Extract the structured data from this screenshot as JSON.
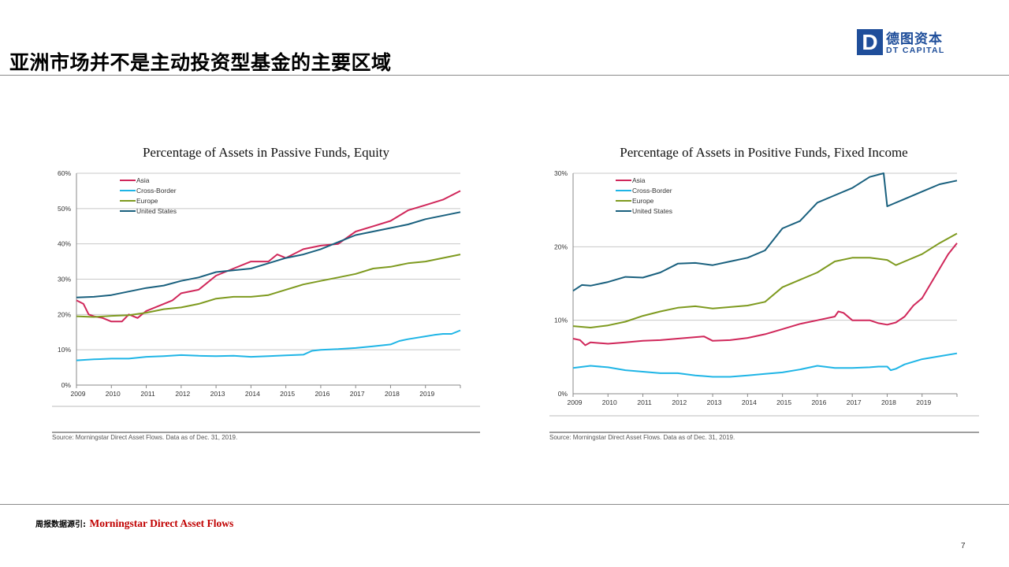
{
  "slide": {
    "title": "亚洲市场并不是主动投资型基金的主要区域",
    "logo_mark": "D",
    "logo_cn": "德图资本",
    "logo_en": "DT CAPITAL",
    "footnote_label": "周报数据源引:",
    "footnote_value": "Morningstar Direct Asset Flows",
    "page_number": "7"
  },
  "colors": {
    "Asia": "#d0275a",
    "Cross-Border": "#1fb5e6",
    "Europe": "#7e9a1f",
    "United States": "#19607e"
  },
  "chart_data": [
    {
      "type": "line",
      "title": "Percentage of Assets in Passive Funds, Equity",
      "source": "Source: Morningstar Direct Asset Flows. Data as of Dec. 31, 2019.",
      "x_tick_labels": [
        "2009",
        "2010",
        "2011",
        "2012",
        "2013",
        "2014",
        "2015",
        "2016",
        "2017",
        "2018",
        "2019"
      ],
      "y_tick_labels": [
        "0%",
        "10%",
        "20%",
        "30%",
        "40%",
        "50%",
        "60%"
      ],
      "xlim": [
        2009,
        2020
      ],
      "ylim": [
        0,
        60
      ],
      "y_ticks": [
        0,
        10,
        20,
        30,
        40,
        50,
        60
      ],
      "grid": true,
      "legend_position": "top-left",
      "series": [
        {
          "name": "Asia",
          "color_key": "Asia",
          "x": [
            2009.0,
            2009.2,
            2009.35,
            2009.5,
            2009.75,
            2010.0,
            2010.3,
            2010.5,
            2010.75,
            2011.0,
            2011.25,
            2011.5,
            2011.75,
            2012.0,
            2012.5,
            2013.0,
            2013.5,
            2014.0,
            2014.5,
            2014.75,
            2015.0,
            2015.5,
            2016.0,
            2016.5,
            2017.0,
            2017.5,
            2018.0,
            2018.5,
            2019.0,
            2019.5,
            2020.0
          ],
          "y": [
            24,
            23,
            20,
            19.5,
            19,
            18,
            18,
            20,
            19,
            21,
            22,
            23,
            24,
            26,
            27,
            31,
            33,
            35,
            35,
            37,
            36,
            38.5,
            39.5,
            40,
            43.5,
            45,
            46.5,
            49.5,
            51,
            52.5,
            55
          ]
        },
        {
          "name": "Cross-Border",
          "color_key": "Cross-Border",
          "x": [
            2009.0,
            2009.5,
            2010.0,
            2010.5,
            2011.0,
            2011.5,
            2012.0,
            2012.5,
            2013.0,
            2013.5,
            2014.0,
            2014.5,
            2015.0,
            2015.5,
            2015.75,
            2016.0,
            2016.5,
            2017.0,
            2017.5,
            2018.0,
            2018.25,
            2018.5,
            2019.0,
            2019.25,
            2019.5,
            2019.75,
            2020.0
          ],
          "y": [
            7,
            7.3,
            7.5,
            7.5,
            8,
            8.2,
            8.5,
            8.3,
            8.2,
            8.3,
            8,
            8.2,
            8.4,
            8.6,
            9.7,
            10,
            10.2,
            10.5,
            11,
            11.5,
            12.5,
            13,
            13.8,
            14.2,
            14.5,
            14.5,
            15.5
          ]
        },
        {
          "name": "Europe",
          "color_key": "Europe",
          "x": [
            2009.0,
            2009.5,
            2010.0,
            2010.5,
            2011.0,
            2011.5,
            2012.0,
            2012.5,
            2013.0,
            2013.5,
            2014.0,
            2014.5,
            2015.0,
            2015.5,
            2016.0,
            2016.5,
            2017.0,
            2017.5,
            2018.0,
            2018.5,
            2019.0,
            2019.5,
            2020.0
          ],
          "y": [
            19.5,
            19.3,
            19.6,
            19.8,
            20.5,
            21.5,
            22,
            23,
            24.5,
            25,
            25,
            25.5,
            27,
            28.5,
            29.5,
            30.5,
            31.5,
            33,
            33.5,
            34.5,
            35,
            36,
            37
          ]
        },
        {
          "name": "United States",
          "color_key": "United States",
          "x": [
            2009.0,
            2009.5,
            2010.0,
            2010.5,
            2011.0,
            2011.5,
            2012.0,
            2012.5,
            2013.0,
            2013.5,
            2014.0,
            2014.5,
            2015.0,
            2015.5,
            2016.0,
            2016.5,
            2017.0,
            2017.5,
            2018.0,
            2018.5,
            2019.0,
            2019.5,
            2020.0
          ],
          "y": [
            24.8,
            25,
            25.5,
            26.5,
            27.5,
            28.2,
            29.5,
            30.5,
            32,
            32.5,
            33,
            34.5,
            36,
            37,
            38.5,
            40.5,
            42.5,
            43.5,
            44.5,
            45.5,
            47,
            48,
            49
          ]
        }
      ]
    },
    {
      "type": "line",
      "title": "Percentage of Assets in Positive Funds, Fixed Income",
      "source": "Source: Morningstar Direct Asset Flows. Data as of Dec. 31, 2019.",
      "x_tick_labels": [
        "2009",
        "2010",
        "2011",
        "2012",
        "2013",
        "2014",
        "2015",
        "2016",
        "2017",
        "2018",
        "2019"
      ],
      "y_tick_labels": [
        "0%",
        "10%",
        "20%",
        "30%"
      ],
      "xlim": [
        2009,
        2020
      ],
      "ylim": [
        0,
        30
      ],
      "y_ticks": [
        0,
        10,
        20,
        30
      ],
      "grid": true,
      "legend_position": "top-left",
      "series": [
        {
          "name": "Asia",
          "color_key": "Asia",
          "x": [
            2009.0,
            2009.2,
            2009.35,
            2009.5,
            2010.0,
            2010.5,
            2011.0,
            2011.5,
            2012.0,
            2012.5,
            2012.75,
            2013.0,
            2013.5,
            2014.0,
            2014.5,
            2015.0,
            2015.5,
            2016.0,
            2016.5,
            2016.6,
            2016.75,
            2017.0,
            2017.5,
            2017.75,
            2018.0,
            2018.25,
            2018.5,
            2018.75,
            2019.0,
            2019.25,
            2019.5,
            2019.75,
            2020.0
          ],
          "y": [
            7.5,
            7.3,
            6.6,
            7,
            6.8,
            7,
            7.2,
            7.3,
            7.5,
            7.7,
            7.8,
            7.2,
            7.3,
            7.6,
            8.1,
            8.8,
            9.5,
            10,
            10.5,
            11.2,
            11,
            10,
            10,
            9.6,
            9.4,
            9.7,
            10.5,
            12,
            13,
            15,
            17,
            19,
            20.5
          ]
        },
        {
          "name": "Cross-Border",
          "color_key": "Cross-Border",
          "x": [
            2009.0,
            2009.5,
            2010.0,
            2010.5,
            2011.0,
            2011.5,
            2012.0,
            2012.5,
            2013.0,
            2013.5,
            2014.0,
            2014.5,
            2015.0,
            2015.5,
            2016.0,
            2016.5,
            2017.0,
            2017.5,
            2017.75,
            2018.0,
            2018.1,
            2018.25,
            2018.5,
            2019.0,
            2019.5,
            2020.0
          ],
          "y": [
            3.5,
            3.8,
            3.6,
            3.2,
            3,
            2.8,
            2.8,
            2.5,
            2.3,
            2.3,
            2.5,
            2.7,
            2.9,
            3.3,
            3.8,
            3.5,
            3.5,
            3.6,
            3.7,
            3.7,
            3.2,
            3.4,
            4,
            4.7,
            5.1,
            5.5
          ]
        },
        {
          "name": "Europe",
          "color_key": "Europe",
          "x": [
            2009.0,
            2009.5,
            2010.0,
            2010.5,
            2011.0,
            2011.5,
            2012.0,
            2012.5,
            2013.0,
            2013.5,
            2014.0,
            2014.5,
            2015.0,
            2015.5,
            2016.0,
            2016.5,
            2017.0,
            2017.5,
            2018.0,
            2018.25,
            2018.5,
            2019.0,
            2019.5,
            2020.0
          ],
          "y": [
            9.2,
            9,
            9.3,
            9.8,
            10.6,
            11.2,
            11.7,
            11.9,
            11.6,
            11.8,
            12,
            12.5,
            14.5,
            15.5,
            16.5,
            18,
            18.5,
            18.5,
            18.2,
            17.5,
            18,
            19,
            20.5,
            21.8
          ]
        },
        {
          "name": "United States",
          "color_key": "United States",
          "x": [
            2009.0,
            2009.25,
            2009.5,
            2010.0,
            2010.5,
            2011.0,
            2011.5,
            2012.0,
            2012.5,
            2013.0,
            2013.5,
            2014.0,
            2014.5,
            2015.0,
            2015.5,
            2016.0,
            2016.5,
            2017.0,
            2017.5,
            2017.9,
            2018.0,
            2018.5,
            2019.0,
            2019.5,
            2020.0
          ],
          "y": [
            14,
            14.8,
            14.7,
            15.2,
            15.9,
            15.8,
            16.5,
            17.7,
            17.8,
            17.5,
            18,
            18.5,
            19.5,
            22.5,
            23.5,
            26,
            27,
            28,
            29.5,
            30,
            25.5,
            26.5,
            27.5,
            28.5,
            29
          ]
        }
      ]
    }
  ]
}
